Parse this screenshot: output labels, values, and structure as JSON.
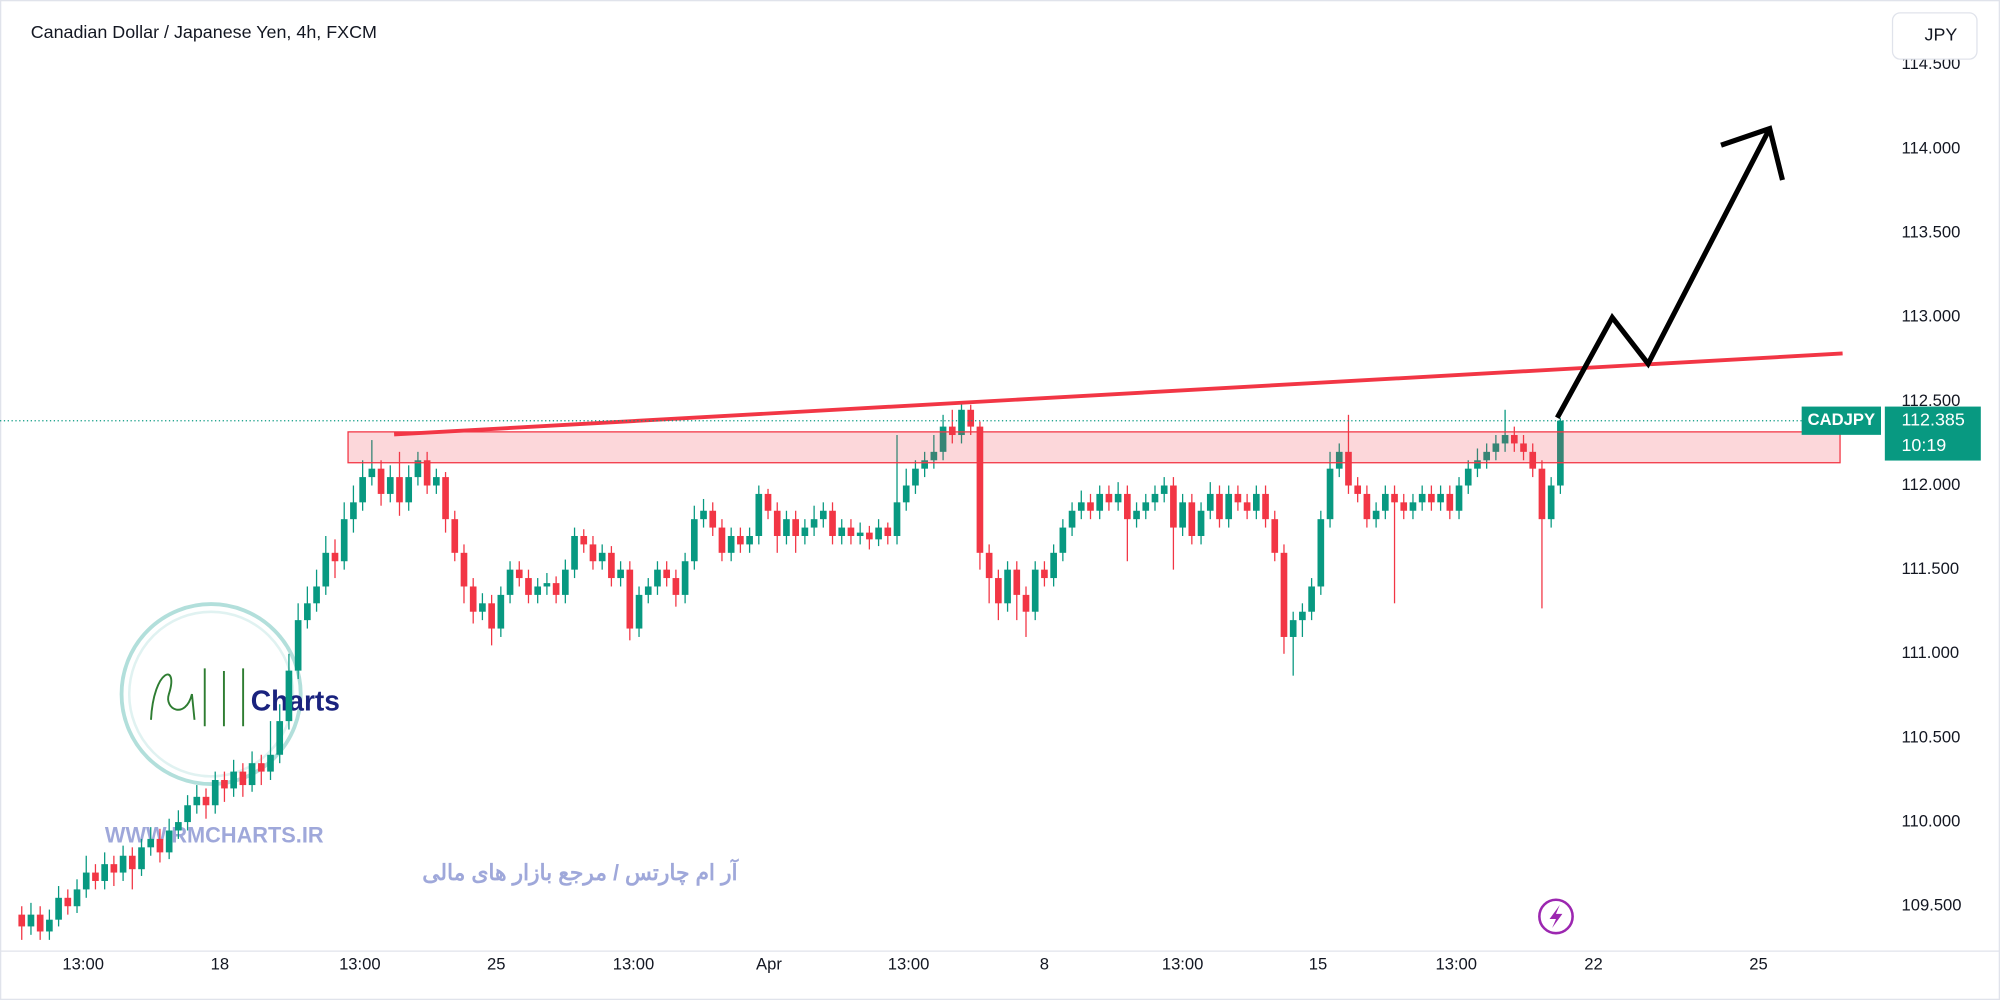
{
  "header": {
    "title": "Canadian Dollar / Japanese Yen, 4h, FXCM",
    "currency": "JPY"
  },
  "watermark": {
    "brand": "Charts",
    "url": "WWW.RMCHARTS.IR",
    "tagline": "آر ام چارتس / مرجع بازار های مالی"
  },
  "chart_data": {
    "type": "candlestick",
    "open": [
      109.45,
      109.38,
      109.45,
      109.35,
      109.42,
      109.55,
      109.5,
      109.6,
      109.7,
      109.65,
      109.75,
      109.7,
      109.8,
      109.72,
      109.85,
      109.9,
      109.82,
      109.95,
      110.0,
      110.1,
      110.15,
      110.1,
      110.25,
      110.2,
      110.3,
      110.22,
      110.35,
      110.3,
      110.4,
      110.6,
      110.9,
      111.2,
      111.3,
      111.4,
      111.6,
      111.55,
      111.8,
      111.9,
      112.05,
      112.1,
      111.95,
      112.05,
      111.9,
      112.05,
      112.15,
      112.0,
      112.05,
      111.8,
      111.6,
      111.4,
      111.25,
      111.3,
      111.15,
      111.35,
      111.5,
      111.45,
      111.35,
      111.4,
      111.42,
      111.35,
      111.5,
      111.7,
      111.65,
      111.55,
      111.6,
      111.45,
      111.5,
      111.15,
      111.35,
      111.4,
      111.5,
      111.45,
      111.35,
      111.55,
      111.8,
      111.85,
      111.75,
      111.6,
      111.7,
      111.65,
      111.7,
      111.95,
      111.85,
      111.7,
      111.8,
      111.7,
      111.75,
      111.8,
      111.85,
      111.7,
      111.75,
      111.7,
      111.72,
      111.68,
      111.75,
      111.7,
      111.9,
      112.0,
      112.1,
      112.15,
      112.2,
      112.35,
      112.3,
      112.45,
      112.35,
      111.6,
      111.45,
      111.3,
      111.5,
      111.35,
      111.25,
      111.5,
      111.45,
      111.6,
      111.75,
      111.85,
      111.9,
      111.85,
      111.95,
      111.9,
      111.95,
      111.8,
      111.85,
      111.9,
      111.95,
      112.0,
      111.75,
      111.9,
      111.7,
      111.85,
      111.95,
      111.8,
      111.95,
      111.9,
      111.85,
      111.95,
      111.8,
      111.6,
      111.1,
      111.2,
      111.25,
      111.4,
      111.8,
      112.1,
      112.2,
      112.0,
      111.95,
      111.8,
      111.85,
      111.95,
      111.9,
      111.85,
      111.9,
      111.95,
      111.9,
      111.95,
      111.85,
      112.0,
      112.1,
      112.15,
      112.2,
      112.25,
      112.3,
      112.25,
      112.2,
      112.1,
      111.8,
      112.0
    ],
    "high": [
      109.5,
      109.52,
      109.5,
      109.48,
      109.62,
      109.6,
      109.66,
      109.8,
      109.75,
      109.82,
      109.8,
      109.86,
      109.85,
      109.9,
      109.97,
      109.96,
      110.02,
      110.07,
      110.16,
      110.22,
      110.2,
      110.3,
      110.3,
      110.37,
      110.35,
      110.42,
      110.4,
      110.6,
      110.7,
      111.0,
      111.3,
      111.4,
      111.5,
      111.7,
      111.68,
      111.9,
      112.0,
      112.15,
      112.27,
      112.15,
      112.12,
      112.2,
      112.12,
      112.2,
      112.2,
      112.1,
      112.08,
      111.85,
      111.65,
      111.45,
      111.36,
      111.35,
      111.4,
      111.55,
      111.55,
      111.5,
      111.45,
      111.48,
      111.46,
      111.56,
      111.75,
      111.74,
      111.7,
      111.65,
      111.64,
      111.55,
      111.55,
      111.4,
      111.45,
      111.55,
      111.55,
      111.5,
      111.6,
      111.88,
      111.92,
      111.9,
      111.8,
      111.75,
      111.75,
      111.75,
      112.0,
      111.98,
      111.9,
      111.85,
      111.85,
      111.8,
      111.88,
      111.9,
      111.9,
      111.8,
      111.8,
      111.78,
      111.76,
      111.8,
      111.78,
      112.3,
      112.1,
      112.15,
      112.2,
      112.3,
      112.42,
      112.45,
      112.5,
      112.48,
      112.38,
      111.65,
      111.5,
      111.55,
      111.55,
      111.4,
      111.55,
      111.55,
      111.65,
      111.8,
      111.9,
      111.97,
      111.95,
      112.0,
      112.0,
      112.02,
      112.0,
      111.9,
      111.95,
      112.0,
      112.05,
      112.05,
      111.95,
      111.95,
      111.9,
      112.02,
      112.0,
      112.0,
      112.0,
      111.95,
      112.0,
      112.0,
      111.85,
      111.65,
      111.25,
      111.3,
      111.45,
      111.85,
      112.2,
      112.25,
      112.42,
      112.05,
      112.0,
      111.9,
      112.0,
      112.0,
      111.95,
      111.95,
      112.0,
      112.0,
      112.0,
      112.0,
      112.05,
      112.15,
      112.22,
      112.25,
      112.3,
      112.45,
      112.35,
      112.3,
      112.25,
      112.15,
      112.05,
      112.4
    ],
    "low": [
      109.3,
      109.33,
      109.3,
      109.3,
      109.38,
      109.45,
      109.46,
      109.55,
      109.6,
      109.6,
      109.62,
      109.65,
      109.6,
      109.68,
      109.8,
      109.76,
      109.78,
      109.9,
      109.95,
      110.05,
      110.02,
      110.05,
      110.12,
      110.15,
      110.15,
      110.18,
      110.22,
      110.25,
      110.35,
      110.55,
      110.85,
      111.15,
      111.25,
      111.35,
      111.45,
      111.5,
      111.72,
      111.85,
      112.0,
      111.88,
      111.9,
      111.82,
      111.85,
      112.0,
      111.95,
      111.95,
      111.72,
      111.55,
      111.3,
      111.18,
      111.2,
      111.05,
      111.1,
      111.3,
      111.4,
      111.3,
      111.3,
      111.35,
      111.3,
      111.3,
      111.45,
      111.6,
      111.5,
      111.5,
      111.4,
      111.4,
      111.08,
      111.1,
      111.3,
      111.35,
      111.4,
      111.28,
      111.3,
      111.5,
      111.75,
      111.7,
      111.55,
      111.55,
      111.6,
      111.6,
      111.65,
      111.8,
      111.6,
      111.65,
      111.6,
      111.65,
      111.7,
      111.75,
      111.65,
      111.65,
      111.65,
      111.65,
      111.62,
      111.64,
      111.65,
      111.65,
      111.85,
      111.95,
      112.05,
      112.1,
      112.15,
      112.25,
      112.25,
      112.3,
      111.5,
      111.3,
      111.2,
      111.25,
      111.2,
      111.1,
      111.2,
      111.4,
      111.4,
      111.55,
      111.7,
      111.8,
      111.8,
      111.8,
      111.85,
      111.85,
      111.55,
      111.75,
      111.8,
      111.85,
      111.9,
      111.5,
      111.7,
      111.65,
      111.65,
      111.8,
      111.75,
      111.75,
      111.85,
      111.8,
      111.8,
      111.75,
      111.55,
      111.0,
      110.87,
      111.1,
      111.2,
      111.35,
      111.75,
      112.05,
      111.95,
      111.9,
      111.75,
      111.75,
      111.8,
      111.3,
      111.8,
      111.8,
      111.85,
      111.85,
      111.85,
      111.8,
      111.8,
      111.95,
      112.05,
      112.1,
      112.15,
      112.2,
      112.2,
      112.15,
      112.05,
      111.27,
      111.75,
      111.95
    ],
    "close": [
      109.38,
      109.45,
      109.35,
      109.42,
      109.55,
      109.5,
      109.6,
      109.7,
      109.65,
      109.75,
      109.7,
      109.8,
      109.72,
      109.85,
      109.9,
      109.82,
      109.95,
      110.0,
      110.1,
      110.15,
      110.1,
      110.25,
      110.2,
      110.3,
      110.22,
      110.35,
      110.3,
      110.4,
      110.6,
      110.9,
      111.2,
      111.3,
      111.4,
      111.6,
      111.55,
      111.8,
      111.9,
      112.05,
      112.1,
      111.95,
      112.05,
      111.9,
      112.05,
      112.15,
      112.0,
      112.05,
      111.8,
      111.6,
      111.4,
      111.25,
      111.3,
      111.15,
      111.35,
      111.5,
      111.45,
      111.35,
      111.4,
      111.42,
      111.35,
      111.5,
      111.7,
      111.65,
      111.55,
      111.6,
      111.45,
      111.5,
      111.15,
      111.35,
      111.4,
      111.5,
      111.45,
      111.35,
      111.55,
      111.8,
      111.85,
      111.75,
      111.6,
      111.7,
      111.65,
      111.7,
      111.95,
      111.85,
      111.7,
      111.8,
      111.7,
      111.75,
      111.8,
      111.85,
      111.7,
      111.75,
      111.7,
      111.72,
      111.68,
      111.75,
      111.7,
      111.9,
      112.0,
      112.1,
      112.15,
      112.2,
      112.35,
      112.3,
      112.45,
      112.35,
      111.6,
      111.45,
      111.3,
      111.5,
      111.35,
      111.25,
      111.5,
      111.45,
      111.6,
      111.75,
      111.85,
      111.9,
      111.85,
      111.95,
      111.9,
      111.95,
      111.8,
      111.85,
      111.9,
      111.95,
      112.0,
      111.75,
      111.9,
      111.7,
      111.85,
      111.95,
      111.8,
      111.95,
      111.9,
      111.85,
      111.95,
      111.8,
      111.6,
      111.1,
      111.2,
      111.25,
      111.4,
      111.8,
      112.1,
      112.2,
      112.0,
      111.95,
      111.8,
      111.85,
      111.95,
      111.9,
      111.85,
      111.9,
      111.95,
      111.9,
      111.95,
      111.85,
      112.0,
      112.1,
      112.15,
      112.2,
      112.25,
      112.3,
      112.25,
      112.2,
      112.1,
      111.8,
      112.0,
      112.385
    ],
    "up_color": "#089981",
    "down_color": "#f23645",
    "xlim": [
      -2.36,
      201.8
    ],
    "xticks": [
      {
        "value": 6.67,
        "label": "13:00"
      },
      {
        "value": 21.5,
        "label": "18"
      },
      {
        "value": 36.7,
        "label": "13:00"
      },
      {
        "value": 51.5,
        "label": "25"
      },
      {
        "value": 66.4,
        "label": "13:00"
      },
      {
        "value": 81.1,
        "label": "Apr"
      },
      {
        "value": 96.25,
        "label": "13:00"
      },
      {
        "value": 111,
        "label": "8"
      },
      {
        "value": 126,
        "label": "13:00"
      },
      {
        "value": 140.7,
        "label": "15"
      },
      {
        "value": 155.7,
        "label": "13:00"
      },
      {
        "value": 170.6,
        "label": "22"
      },
      {
        "value": 188.5,
        "label": "25"
      }
    ],
    "ylim": [
      109.233,
      114.885
    ],
    "yticks": [
      {
        "value": 109.5,
        "label": "109.500"
      },
      {
        "value": 110,
        "label": "110.000"
      },
      {
        "value": 110.5,
        "label": "110.500"
      },
      {
        "value": 111,
        "label": "111.000"
      },
      {
        "value": 111.5,
        "label": "111.500"
      },
      {
        "value": 112,
        "label": "112.000"
      },
      {
        "value": 112.5,
        "label": "112.500"
      },
      {
        "value": 113,
        "label": "113.000"
      },
      {
        "value": 113.5,
        "label": "113.500"
      },
      {
        "value": 114,
        "label": "114.000"
      },
      {
        "value": 114.5,
        "label": "114.500"
      }
    ],
    "symbol": "CADJPY",
    "last_price": 112.385,
    "countdown": "10:19"
  }
}
